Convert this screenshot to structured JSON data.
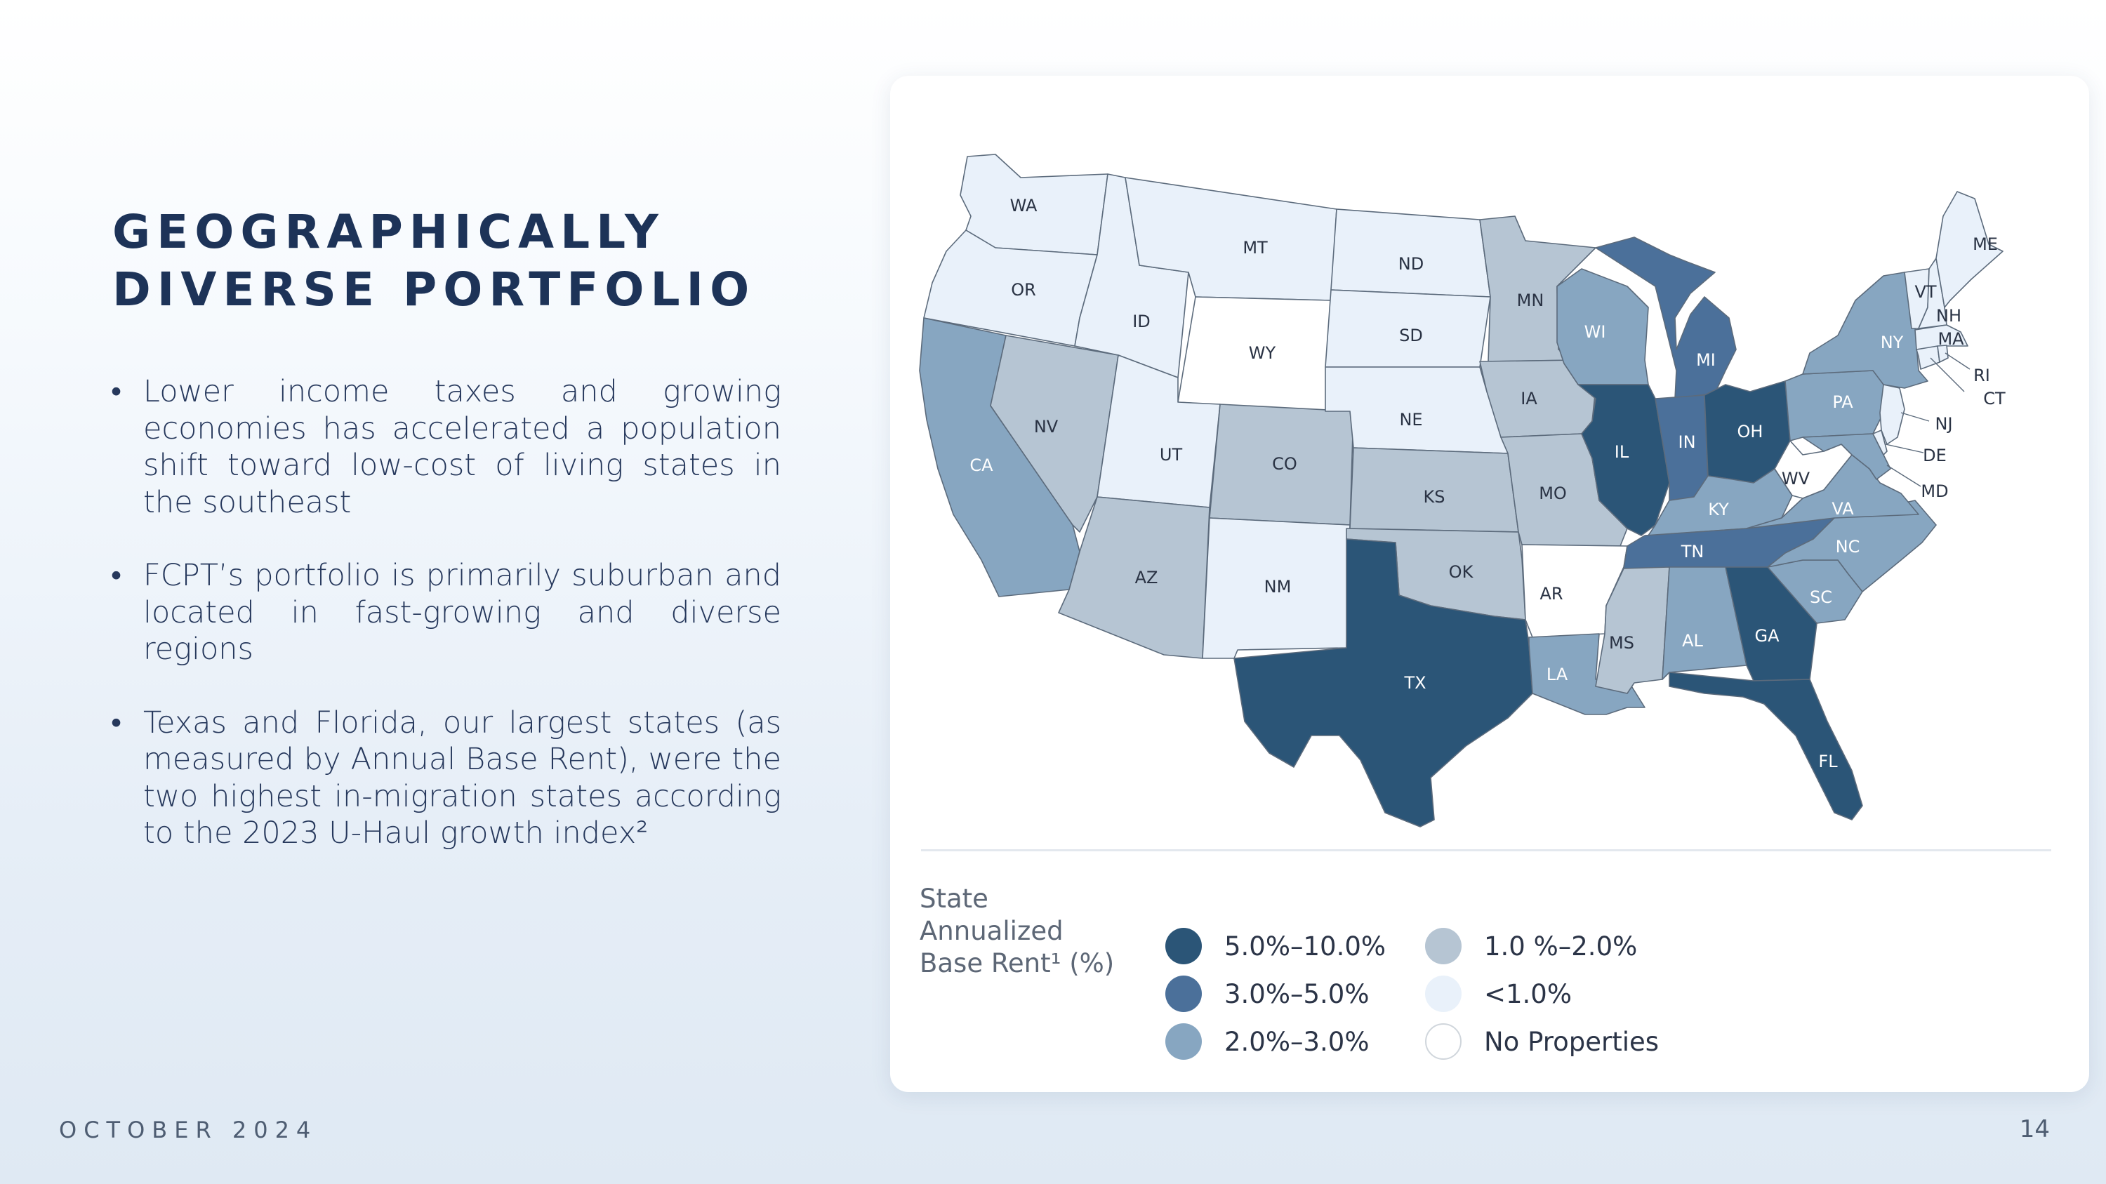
{
  "title": {
    "line1": "GEOGRAPHICALLY",
    "line2": "DIVERSE PORTFOLIO"
  },
  "bullets": [
    "Lower income taxes and growing economies has accelerated a population shift toward low-cost of living states in the southeast",
    "FCPT’s portfolio is primarily suburban and located in fast-growing and diverse regions",
    "Texas and Florida, our largest states (as measured by Annual Base Rent), were the two highest in-migration states according to the 2023 U-Haul growth index²"
  ],
  "footer": {
    "date": "OCTOBER 2024",
    "page": "14"
  },
  "legend": {
    "title_lines": [
      "State",
      "Annualized",
      "Base Rent¹ (%)"
    ],
    "items": [
      {
        "label": "5.0%–10.0%",
        "color": "#2b5577"
      },
      {
        "label": "3.0%–5.0%",
        "color": "#4b709a"
      },
      {
        "label": "2.0%–3.0%",
        "color": "#87a6c1"
      },
      {
        "label": "1.0 %–2.0%",
        "color": "#b6c5d3"
      },
      {
        "label": "<1.0%",
        "color": "#e9f1fa"
      },
      {
        "label": "No Properties",
        "color": "#ffffff"
      }
    ]
  },
  "colors": {
    "t1": "#2b5577",
    "t2": "#4b709a",
    "t3": "#87a6c1",
    "t4": "#b6c5d3",
    "t5": "#e9f1fa",
    "t6": "#ffffff"
  },
  "states": [
    {
      "code": "WA",
      "tier": "t5"
    },
    {
      "code": "OR",
      "tier": "t5"
    },
    {
      "code": "CA",
      "tier": "t3"
    },
    {
      "code": "NV",
      "tier": "t4"
    },
    {
      "code": "ID",
      "tier": "t5"
    },
    {
      "code": "MT",
      "tier": "t5"
    },
    {
      "code": "WY",
      "tier": "t6"
    },
    {
      "code": "UT",
      "tier": "t5"
    },
    {
      "code": "AZ",
      "tier": "t4"
    },
    {
      "code": "CO",
      "tier": "t4"
    },
    {
      "code": "NM",
      "tier": "t5"
    },
    {
      "code": "ND",
      "tier": "t5"
    },
    {
      "code": "SD",
      "tier": "t5"
    },
    {
      "code": "NE",
      "tier": "t5"
    },
    {
      "code": "KS",
      "tier": "t4"
    },
    {
      "code": "OK",
      "tier": "t4"
    },
    {
      "code": "TX",
      "tier": "t1"
    },
    {
      "code": "MN",
      "tier": "t4"
    },
    {
      "code": "IA",
      "tier": "t4"
    },
    {
      "code": "MO",
      "tier": "t4"
    },
    {
      "code": "AR",
      "tier": "t6"
    },
    {
      "code": "LA",
      "tier": "t3"
    },
    {
      "code": "WI",
      "tier": "t3"
    },
    {
      "code": "IL",
      "tier": "t1"
    },
    {
      "code": "MI",
      "tier": "t2"
    },
    {
      "code": "IN",
      "tier": "t2"
    },
    {
      "code": "OH",
      "tier": "t1"
    },
    {
      "code": "KY",
      "tier": "t3"
    },
    {
      "code": "TN",
      "tier": "t2"
    },
    {
      "code": "MS",
      "tier": "t4"
    },
    {
      "code": "AL",
      "tier": "t3"
    },
    {
      "code": "GA",
      "tier": "t1"
    },
    {
      "code": "FL",
      "tier": "t1"
    },
    {
      "code": "SC",
      "tier": "t3"
    },
    {
      "code": "NC",
      "tier": "t3"
    },
    {
      "code": "VA",
      "tier": "t3"
    },
    {
      "code": "WV",
      "tier": "t6"
    },
    {
      "code": "PA",
      "tier": "t3"
    },
    {
      "code": "NY",
      "tier": "t3"
    },
    {
      "code": "ME",
      "tier": "t5"
    },
    {
      "code": "VT",
      "tier": "t5"
    },
    {
      "code": "NH",
      "tier": "t5"
    },
    {
      "code": "MA",
      "tier": "t5"
    },
    {
      "code": "RI",
      "tier": "t5"
    },
    {
      "code": "CT",
      "tier": "t5"
    },
    {
      "code": "NJ",
      "tier": "t5"
    },
    {
      "code": "DE",
      "tier": "t5"
    },
    {
      "code": "MD",
      "tier": "t3"
    }
  ]
}
